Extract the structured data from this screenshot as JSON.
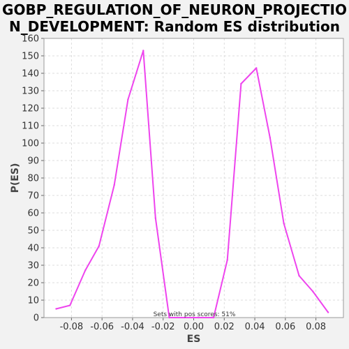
{
  "title_lines": [
    "GOBP_REGULATION_OF_NEURON_PROJECTIO",
    "N_DEVELOPMENT: Random ES distribution"
  ],
  "colors": {
    "line": "#ee44ee",
    "grid": "#dddddd",
    "plot_bg": "#ffffff",
    "page_bg": "#f2f2f2"
  },
  "chart_data": {
    "type": "line",
    "title": "GOBP_REGULATION_OF_NEURON_PROJECTION_DEVELOPMENT: Random ES distribution",
    "xlabel": "ES",
    "ylabel": "P(ES)",
    "xlim": [
      -0.098,
      0.098
    ],
    "ylim": [
      0,
      160
    ],
    "x_ticks": [
      -0.08,
      -0.06,
      -0.04,
      -0.02,
      0.0,
      0.02,
      0.04,
      0.06,
      0.08
    ],
    "x_tick_labels": [
      "-0.08",
      "-0.06",
      "-0.04",
      "-0.02",
      "0.00",
      "0.02",
      "0.04",
      "0.06",
      "0.08"
    ],
    "y_ticks": [
      0,
      10,
      20,
      30,
      40,
      50,
      60,
      70,
      80,
      90,
      100,
      110,
      120,
      130,
      140,
      150,
      160
    ],
    "grid": true,
    "annotation": "Sets with pos scores: 51%",
    "series": [
      {
        "x": [
          -0.09,
          -0.081,
          -0.071,
          -0.062,
          -0.052,
          -0.043,
          -0.033,
          -0.025,
          -0.016,
          -0.006,
          0.003,
          0.013,
          0.022,
          0.031,
          0.041,
          0.05,
          0.059,
          0.069,
          0.078,
          0.088
        ],
        "y": [
          5,
          7,
          27,
          41,
          76,
          125,
          153,
          57,
          0,
          0,
          0,
          0,
          33,
          134,
          143,
          103,
          54,
          24,
          15,
          3
        ]
      }
    ]
  }
}
